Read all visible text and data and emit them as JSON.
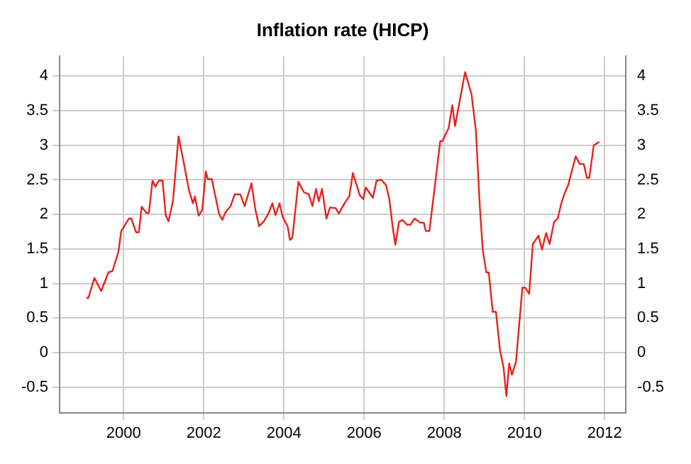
{
  "chart_data": {
    "type": "line",
    "title": "Inflation rate (HICP)",
    "x": [
      1999.07,
      1999.12,
      1999.27,
      1999.44,
      1999.62,
      1999.72,
      1999.87,
      1999.94,
      2000.13,
      2000.19,
      2000.31,
      2000.38,
      2000.45,
      2000.57,
      2000.63,
      2000.72,
      2000.79,
      2000.88,
      2000.97,
      2001.05,
      2001.12,
      2001.23,
      2001.37,
      2001.49,
      2001.63,
      2001.73,
      2001.78,
      2001.87,
      2001.96,
      2002.05,
      2002.1,
      2002.2,
      2002.38,
      2002.46,
      2002.55,
      2002.67,
      2002.77,
      2002.91,
      2003.02,
      2003.19,
      2003.29,
      2003.38,
      2003.5,
      2003.62,
      2003.71,
      2003.79,
      2003.89,
      2003.97,
      2004.09,
      2004.15,
      2004.21,
      2004.36,
      2004.5,
      2004.62,
      2004.71,
      2004.8,
      2004.87,
      2004.95,
      2005.06,
      2005.15,
      2005.29,
      2005.37,
      2005.51,
      2005.63,
      2005.72,
      2005.8,
      2005.89,
      2005.98,
      2006.04,
      2006.22,
      2006.31,
      2006.43,
      2006.55,
      2006.63,
      2006.71,
      2006.78,
      2006.87,
      2006.96,
      2007.07,
      2007.16,
      2007.26,
      2007.4,
      2007.49,
      2007.54,
      2007.63,
      2007.9,
      2007.95,
      2008.11,
      2008.2,
      2008.27,
      2008.52,
      2008.68,
      2008.79,
      2008.89,
      2008.96,
      2009.05,
      2009.11,
      2009.21,
      2009.29,
      2009.39,
      2009.48,
      2009.55,
      2009.62,
      2009.69,
      2009.79,
      2009.95,
      2010.02,
      2010.12,
      2010.21,
      2010.35,
      2010.44,
      2010.54,
      2010.63,
      2010.74,
      2010.83,
      2010.92,
      2011.0,
      2011.09,
      2011.28,
      2011.38,
      2011.48,
      2011.56,
      2011.62,
      2011.73,
      2011.87
    ],
    "series": [
      {
        "color": "#e8221c",
        "values": [
          0.79,
          0.79,
          1.08,
          0.89,
          1.16,
          1.18,
          1.46,
          1.76,
          1.94,
          1.94,
          1.74,
          1.74,
          2.11,
          2.02,
          2.02,
          2.49,
          2.4,
          2.49,
          2.49,
          1.99,
          1.9,
          2.19,
          3.13,
          2.78,
          2.35,
          2.16,
          2.26,
          1.98,
          2.06,
          2.62,
          2.51,
          2.51,
          2.01,
          1.92,
          2.04,
          2.12,
          2.29,
          2.29,
          2.12,
          2.45,
          2.06,
          1.83,
          1.9,
          2.02,
          2.16,
          1.99,
          2.16,
          1.96,
          1.83,
          1.63,
          1.66,
          2.47,
          2.32,
          2.29,
          2.12,
          2.37,
          2.19,
          2.37,
          1.94,
          2.1,
          2.09,
          2.01,
          2.16,
          2.26,
          2.6,
          2.45,
          2.28,
          2.22,
          2.39,
          2.24,
          2.49,
          2.5,
          2.42,
          2.22,
          1.83,
          1.56,
          1.89,
          1.92,
          1.85,
          1.85,
          1.94,
          1.88,
          1.88,
          1.76,
          1.76,
          3.06,
          3.06,
          3.25,
          3.58,
          3.28,
          4.06,
          3.74,
          3.21,
          2.09,
          1.49,
          1.16,
          1.16,
          0.59,
          0.59,
          0.04,
          -0.22,
          -0.63,
          -0.16,
          -0.32,
          -0.13,
          0.94,
          0.94,
          0.85,
          1.57,
          1.69,
          1.49,
          1.73,
          1.57,
          1.89,
          1.94,
          2.16,
          2.3,
          2.42,
          2.84,
          2.73,
          2.73,
          2.53,
          2.53,
          3.0,
          3.05
        ]
      }
    ],
    "xlim": [
      1998.4,
      2012.53
    ],
    "xticks": [
      2000,
      2002,
      2004,
      2006,
      2008,
      2010,
      2012
    ],
    "ylim": [
      -0.87,
      4.29
    ],
    "yticks": [
      -0.5,
      0,
      0.5,
      1,
      1.5,
      2,
      2.5,
      3,
      3.5,
      4
    ],
    "y2lim": [
      -0.87,
      4.29
    ],
    "y2ticks": [
      -0.5,
      0,
      0.5,
      1,
      1.5,
      2,
      2.5,
      3,
      3.5,
      4
    ],
    "grid": true,
    "legend": false,
    "marker": "none",
    "line_style": "solid"
  }
}
